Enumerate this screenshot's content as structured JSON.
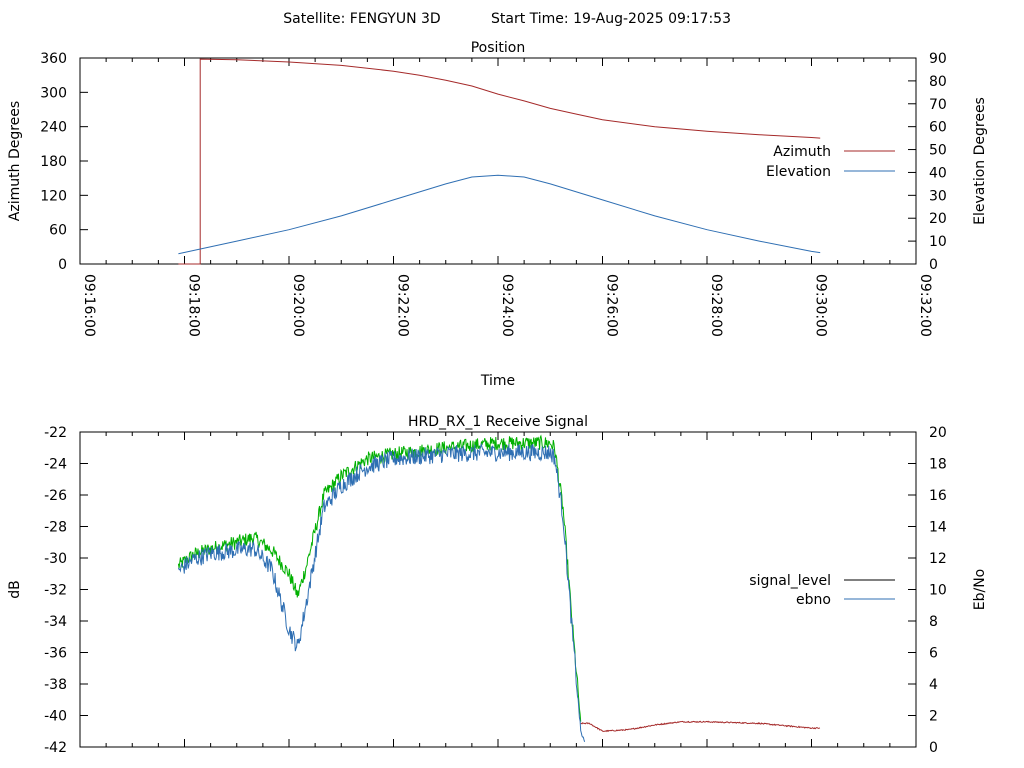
{
  "header": {
    "satellite": "Satellite: FENGYUN 3D",
    "start_time": "Start Time: 19-Aug-2025 09:17:53"
  },
  "colors": {
    "azimuth": "#a52a2a",
    "elevation": "#2f6fb3",
    "signal_level": "#000000",
    "ebno": "#2f6fb3",
    "green_trace": "#00b000",
    "red_trace": "#a52a2a"
  },
  "chart_data": [
    {
      "type": "line",
      "title": "Position",
      "xlabel": "Time",
      "ylabel": "Azimuth Degrees",
      "y2label": "Elevation Degrees",
      "xlim": [
        "09:16:00",
        "09:32:00"
      ],
      "ylim": [
        0,
        360
      ],
      "y2lim": [
        0,
        90
      ],
      "x_tick_labels": [
        "09:16:00",
        "09:18:00",
        "09:20:00",
        "09:22:00",
        "09:24:00",
        "09:26:00",
        "09:28:00",
        "09:30:00",
        "09:32:00"
      ],
      "y_tick_labels": [
        "0",
        "60",
        "120",
        "180",
        "240",
        "300",
        "360"
      ],
      "y2_tick_labels": [
        "0",
        "10",
        "20",
        "30",
        "40",
        "50",
        "60",
        "70",
        "80",
        "90"
      ],
      "legend_position": "right",
      "series": [
        {
          "name": "Azimuth",
          "axis": "left",
          "x": [
            "09:17:53",
            "09:18:18",
            "09:18:18",
            "09:19:00",
            "09:20:00",
            "09:21:00",
            "09:22:00",
            "09:22:30",
            "09:23:00",
            "09:23:30",
            "09:24:00",
            "09:24:30",
            "09:25:00",
            "09:25:30",
            "09:26:00",
            "09:27:00",
            "09:28:00",
            "09:29:00",
            "09:30:00",
            "09:30:10"
          ],
          "values": [
            0,
            0,
            358,
            357,
            353,
            347,
            337,
            330,
            321,
            311,
            297,
            285,
            272,
            262,
            252,
            240,
            232,
            226,
            221,
            220
          ]
        },
        {
          "name": "Elevation",
          "axis": "right",
          "x": [
            "09:17:53",
            "09:19:00",
            "09:20:00",
            "09:21:00",
            "09:22:00",
            "09:23:00",
            "09:23:30",
            "09:24:00",
            "09:24:30",
            "09:25:00",
            "09:26:00",
            "09:27:00",
            "09:28:00",
            "09:29:00",
            "09:30:00",
            "09:30:10"
          ],
          "values": [
            4.5,
            10,
            15,
            21,
            28,
            35,
            38,
            38.8,
            38,
            35,
            28,
            21,
            15,
            10,
            5.5,
            5
          ]
        }
      ]
    },
    {
      "type": "line",
      "title": "HRD_RX_1 Receive Signal",
      "ylabel": "dB",
      "y2label": "Eb/No",
      "xlim": [
        "09:16:00",
        "09:32:00"
      ],
      "ylim": [
        -42,
        -22
      ],
      "y2lim": [
        0,
        20
      ],
      "y_tick_labels": [
        "-42",
        "-40",
        "-38",
        "-36",
        "-34",
        "-32",
        "-30",
        "-28",
        "-26",
        "-24",
        "-22"
      ],
      "y2_tick_labels": [
        "0",
        "2",
        "4",
        "6",
        "8",
        "10",
        "12",
        "14",
        "16",
        "18",
        "20"
      ],
      "legend_position": "right",
      "legend": [
        "signal_level",
        "ebno"
      ],
      "series": [
        {
          "axis": "right",
          "x": [
            "09:17:53",
            "09:18:10",
            "09:18:30",
            "09:19:00",
            "09:19:20",
            "09:19:40",
            "09:20:00",
            "09:20:10",
            "09:20:20",
            "09:20:40",
            "09:21:00",
            "09:21:30",
            "09:22:00",
            "09:23:00",
            "09:24:00",
            "09:25:00",
            "09:25:05",
            "09:25:15",
            "09:25:25",
            "09:25:35"
          ],
          "values": [
            11.5,
            12.2,
            12.6,
            13.0,
            13.3,
            12.5,
            11.0,
            9.6,
            11.5,
            16.0,
            17.2,
            18.3,
            18.6,
            19.0,
            19.3,
            19.3,
            19.0,
            15.0,
            8.0,
            1.5
          ]
        },
        {
          "axis": "right",
          "x": [
            "09:25:35",
            "09:25:45",
            "09:26:00",
            "09:26:30",
            "09:27:00",
            "09:27:30",
            "09:28:00",
            "09:29:00",
            "09:30:00",
            "09:30:10"
          ],
          "values": [
            1.5,
            1.5,
            1.0,
            1.1,
            1.4,
            1.6,
            1.6,
            1.5,
            1.2,
            1.2
          ]
        },
        {
          "name": "signal_level",
          "axis": "left",
          "x": [],
          "values": []
        },
        {
          "name": "ebno",
          "axis": "right",
          "x": [
            "09:17:53",
            "09:18:10",
            "09:18:30",
            "09:19:00",
            "09:19:20",
            "09:19:40",
            "09:20:00",
            "09:20:10",
            "09:20:20",
            "09:20:40",
            "09:21:00",
            "09:21:30",
            "09:22:00",
            "09:23:00",
            "09:24:00",
            "09:25:00",
            "09:25:05",
            "09:25:15",
            "09:25:25",
            "09:25:35",
            "09:25:40"
          ],
          "values": [
            11.2,
            11.9,
            12.3,
            12.5,
            12.6,
            11.3,
            7.5,
            6.3,
            9.2,
            15.2,
            16.6,
            17.8,
            18.3,
            18.6,
            18.7,
            18.7,
            18.4,
            14.5,
            7.5,
            1.0,
            0.2
          ]
        }
      ]
    }
  ]
}
